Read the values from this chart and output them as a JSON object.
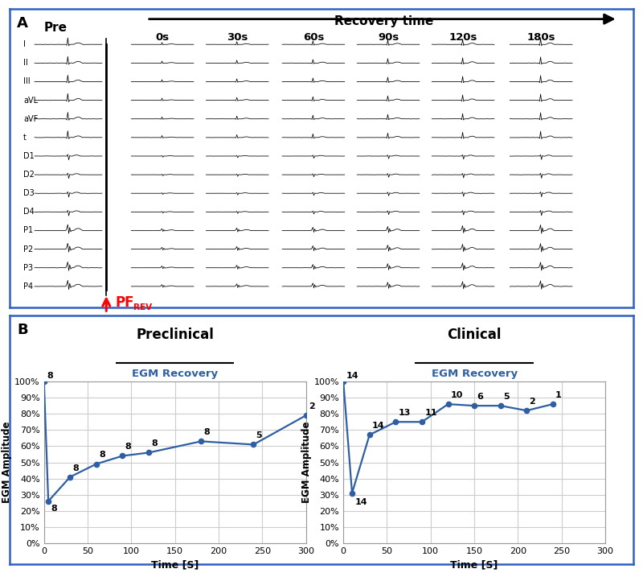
{
  "panel_A_label": "A",
  "panel_B_label": "B",
  "recovery_time_label": "Recovery time",
  "pre_label": "Pre",
  "time_labels": [
    "0s",
    "30s",
    "60s",
    "90s",
    "120s",
    "180s"
  ],
  "ecg_leads": [
    "I",
    "II",
    "III",
    "aVL",
    "aVF",
    "t",
    "D1",
    "D2",
    "D3",
    "D4",
    "P1",
    "P2",
    "P3",
    "P4"
  ],
  "pf_arrow_color": "#ff0000",
  "preclinical_title": "Preclinical",
  "clinical_title": "Clinical",
  "egm_title": "EGM Recovery",
  "xlabel": "Time [S]",
  "ylabel": "EGM Amplitude",
  "line_color": "#2E5FA3",
  "marker_color": "#2E5FA3",
  "preclinical_x": [
    0,
    5,
    30,
    60,
    90,
    120,
    180,
    240,
    300
  ],
  "preclinical_y": [
    100,
    26,
    41,
    49,
    54,
    56,
    63,
    61,
    79
  ],
  "preclinical_n": [
    8,
    8,
    8,
    8,
    8,
    8,
    8,
    5,
    2
  ],
  "clinical_x": [
    0,
    10,
    30,
    60,
    90,
    120,
    150,
    180,
    210,
    240
  ],
  "clinical_y": [
    100,
    31,
    67,
    75,
    75,
    86,
    85,
    85,
    82,
    86
  ],
  "clinical_n": [
    14,
    14,
    14,
    13,
    11,
    10,
    6,
    5,
    2,
    1
  ],
  "ytick_vals": [
    0,
    10,
    20,
    30,
    40,
    50,
    60,
    70,
    80,
    90,
    100
  ],
  "ytick_labels": [
    "0%",
    "10%",
    "20%",
    "30%",
    "40%",
    "50%",
    "60%",
    "70%",
    "80%",
    "90%",
    "100%"
  ],
  "xtick_vals": [
    0,
    50,
    100,
    150,
    200,
    250,
    300
  ],
  "xtick_labels": [
    "0",
    "50",
    "100",
    "150",
    "200",
    "250",
    "300"
  ],
  "grid_color": "#cccccc",
  "bg_color": "#ffffff",
  "border_color": "#3060c0",
  "fig_bg": "#ffffff"
}
